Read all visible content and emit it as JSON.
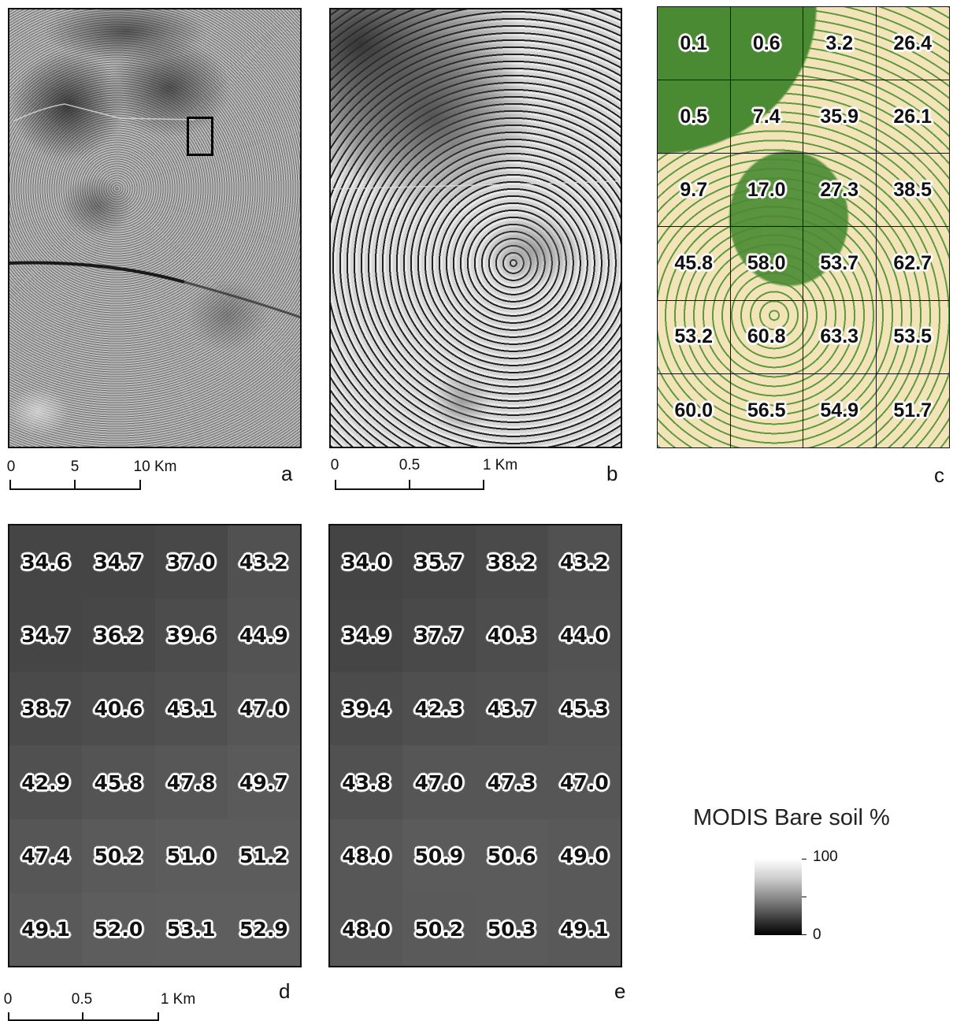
{
  "panels": {
    "a": {
      "letter": "a",
      "scale": {
        "ticks": [
          "0",
          "5",
          "10 Km"
        ]
      }
    },
    "b": {
      "letter": "b",
      "scale": {
        "ticks": [
          "0",
          "0.5",
          "1 Km"
        ]
      }
    },
    "c": {
      "letter": "c",
      "colors": {
        "vegetation": "#4a8a32",
        "bare": "#f3e3b8"
      },
      "values": [
        [
          "0.1",
          "0.6",
          "3.2",
          "26.4"
        ],
        [
          "0.5",
          "7.4",
          "35.9",
          "26.1"
        ],
        [
          "9.7",
          "17.0",
          "27.3",
          "38.5"
        ],
        [
          "45.8",
          "58.0",
          "53.7",
          "62.7"
        ],
        [
          "53.2",
          "60.8",
          "63.3",
          "53.5"
        ],
        [
          "60.0",
          "56.5",
          "54.9",
          "51.7"
        ]
      ]
    },
    "d": {
      "letter": "d",
      "scale": {
        "ticks": [
          "0",
          "0.5",
          "1 Km"
        ]
      },
      "values": [
        [
          "34.6",
          "34.7",
          "37.0",
          "43.2"
        ],
        [
          "34.7",
          "36.2",
          "39.6",
          "44.9"
        ],
        [
          "38.7",
          "40.6",
          "43.1",
          "47.0"
        ],
        [
          "42.9",
          "45.8",
          "47.8",
          "49.7"
        ],
        [
          "47.4",
          "50.2",
          "51.0",
          "51.2"
        ],
        [
          "49.1",
          "52.0",
          "53.1",
          "52.9"
        ]
      ]
    },
    "e": {
      "letter": "e",
      "values": [
        [
          "34.0",
          "35.7",
          "38.2",
          "43.2"
        ],
        [
          "34.9",
          "37.7",
          "40.3",
          "44.0"
        ],
        [
          "39.4",
          "42.3",
          "43.7",
          "45.3"
        ],
        [
          "43.8",
          "47.0",
          "47.3",
          "47.0"
        ],
        [
          "48.0",
          "50.9",
          "50.6",
          "49.0"
        ],
        [
          "48.0",
          "50.2",
          "50.3",
          "49.1"
        ]
      ]
    }
  },
  "legend": {
    "title": "MODIS Bare soil %",
    "max_label": "100",
    "min_label": "0",
    "ramp_colors": [
      "#ffffff",
      "#000000"
    ]
  }
}
